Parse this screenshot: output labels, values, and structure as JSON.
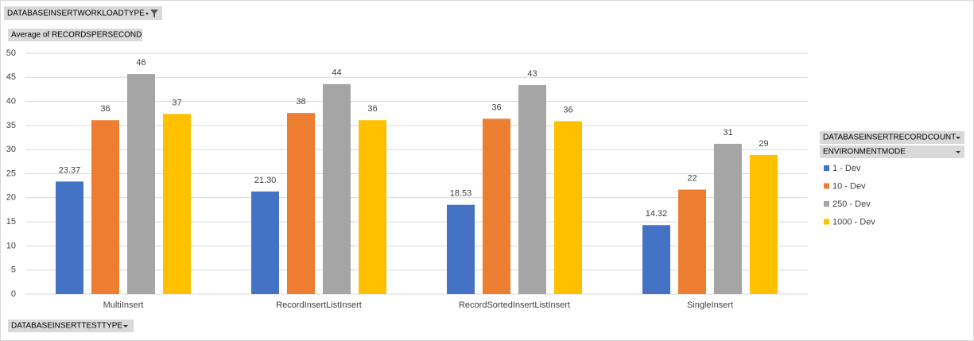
{
  "chart_data": {
    "type": "bar",
    "filter_field": "DATABASEINSERTWORKLOADTYPE",
    "values_field": "Average of RECORDSPERSECOND",
    "legend_fields": [
      "DATABASEINSERTRECORDCOUNT",
      "ENVIRONMENTMODE"
    ],
    "axis_field": "DATABASEINSERTTESTTYPE",
    "categories": [
      "MultiInsert",
      "RecordInsertListInsert",
      "RecordSortedInsertListInsert",
      "SingleInsert"
    ],
    "series": [
      {
        "name": "1 - Dev",
        "color": "#4472c4",
        "values": [
          23.37,
          21.3,
          18.53,
          14.32
        ],
        "value_labels": [
          "23.37",
          "21.30",
          "18.53",
          "14.32"
        ]
      },
      {
        "name": "10 - Dev",
        "color": "#ed7d31",
        "values": [
          36.1,
          37.6,
          36.4,
          21.7
        ],
        "value_labels": [
          "36",
          "38",
          "36",
          "22"
        ]
      },
      {
        "name": "250 - Dev",
        "color": "#a5a5a5",
        "values": [
          45.7,
          43.6,
          43.4,
          31.2
        ],
        "value_labels": [
          "46",
          "44",
          "43",
          "31"
        ]
      },
      {
        "name": "1000 - Dev",
        "color": "#ffc000",
        "values": [
          37.4,
          36.1,
          35.9,
          28.9
        ],
        "value_labels": [
          "37",
          "36",
          "36",
          "29"
        ]
      }
    ],
    "ylim": [
      0,
      50
    ],
    "yticks": [
      0,
      5,
      10,
      15,
      20,
      25,
      30,
      35,
      40,
      45,
      50
    ],
    "grid": true
  }
}
